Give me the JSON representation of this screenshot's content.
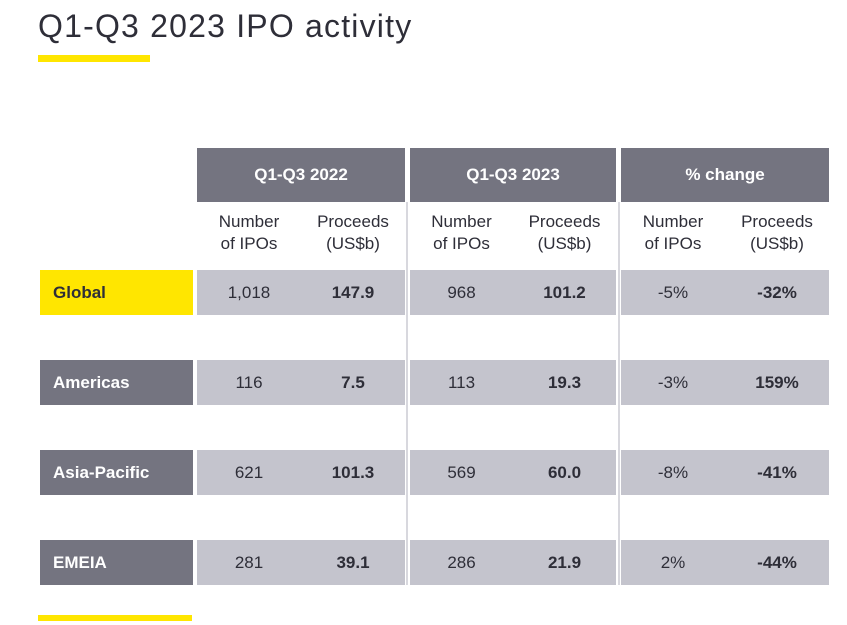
{
  "title": "Q1-Q3 2023 IPO activity",
  "colors": {
    "accent_yellow": "#ffe600",
    "header_gray": "#747480",
    "row_band_gray": "#c4c4cd",
    "text_dark": "#2e2e38"
  },
  "table": {
    "column_groups": [
      {
        "label": "Q1-Q3 2022"
      },
      {
        "label": "Q1-Q3 2023"
      },
      {
        "label": "% change"
      }
    ],
    "subheaders": {
      "number_of_ipos": "Number\nof IPOs",
      "proceeds": "Proceeds\n(US$b)"
    },
    "rows": [
      {
        "label": "Global",
        "values": [
          "1,018",
          "147.9",
          "968",
          "101.2",
          "-5%",
          "-32%"
        ]
      },
      {
        "label": "Americas",
        "values": [
          "116",
          "7.5",
          "113",
          "19.3",
          "-3%",
          "159%"
        ]
      },
      {
        "label": "Asia-Pacific",
        "values": [
          "621",
          "101.3",
          "569",
          "60.0",
          "-8%",
          "-41%"
        ]
      },
      {
        "label": "EMEIA",
        "values": [
          "281",
          "39.1",
          "286",
          "21.9",
          "2%",
          "-44%"
        ]
      }
    ]
  },
  "chart_data": {
    "type": "table",
    "title": "Q1-Q3 2023 IPO activity",
    "column_groups": [
      "Q1-Q3 2022",
      "Q1-Q3 2023",
      "% change"
    ],
    "columns": [
      "Q1-Q3 2022 Number of IPOs",
      "Q1-Q3 2022 Proceeds (US$b)",
      "Q1-Q3 2023 Number of IPOs",
      "Q1-Q3 2023 Proceeds (US$b)",
      "% change Number of IPOs",
      "% change Proceeds (US$b)"
    ],
    "rows": [
      [
        "Global",
        1018,
        147.9,
        968,
        101.2,
        "-5%",
        "-32%"
      ],
      [
        "Americas",
        116,
        7.5,
        113,
        19.3,
        "-3%",
        "159%"
      ],
      [
        "Asia-Pacific",
        621,
        101.3,
        569,
        60.0,
        "-8%",
        "-41%"
      ],
      [
        "EMEIA",
        281,
        39.1,
        286,
        21.9,
        "2%",
        "-44%"
      ]
    ]
  }
}
